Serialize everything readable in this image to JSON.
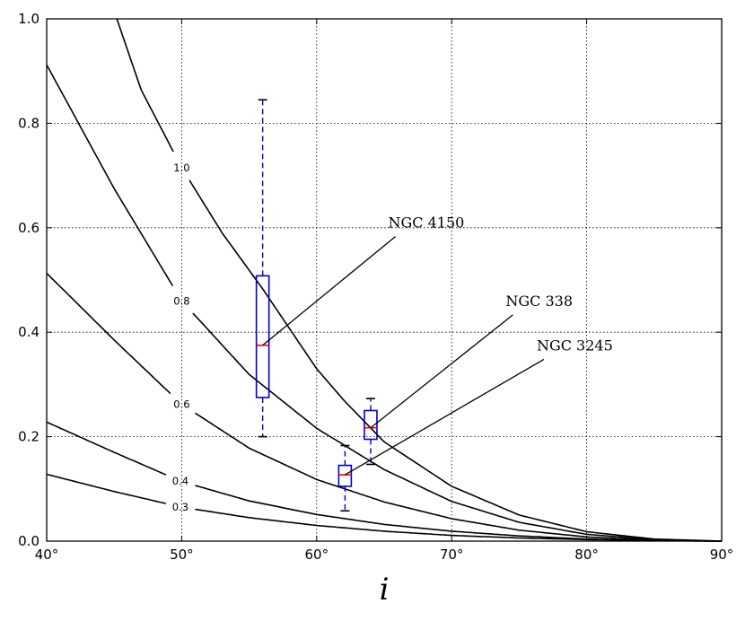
{
  "chart_data": {
    "type": "line",
    "title": "",
    "xlabel": "i",
    "ylabel": "",
    "xlim": [
      40,
      90
    ],
    "ylim": [
      0,
      1.0
    ],
    "grid": true,
    "x_ticks": [
      40,
      50,
      60,
      70,
      80,
      90
    ],
    "x_tick_labels": [
      "40°",
      "50°",
      "60°",
      "70°",
      "80°",
      "90°"
    ],
    "y_ticks": [
      0.0,
      0.2,
      0.4,
      0.6,
      0.8,
      1.0
    ],
    "y_tick_labels": [
      "0.0",
      "0.2",
      "0.4",
      "0.6",
      "0.8",
      "1.0"
    ],
    "colors": {
      "curve": "#000000",
      "box": "#0000cc",
      "median": "#ff0000",
      "grid": "#000000"
    },
    "contours": [
      {
        "label": "0.3",
        "label_x": 49.9,
        "points": [
          [
            40,
            0.128
          ],
          [
            45,
            0.095
          ],
          [
            50,
            0.065
          ],
          [
            55,
            0.045
          ],
          [
            60,
            0.03
          ],
          [
            65,
            0.019
          ],
          [
            70,
            0.011
          ],
          [
            75,
            0.006
          ],
          [
            80,
            0.003
          ],
          [
            85,
            0.001
          ],
          [
            90,
            0.0
          ]
        ]
      },
      {
        "label": "0.4",
        "label_x": 49.9,
        "points": [
          [
            40,
            0.228
          ],
          [
            45,
            0.17
          ],
          [
            50,
            0.114
          ],
          [
            55,
            0.077
          ],
          [
            60,
            0.051
          ],
          [
            65,
            0.032
          ],
          [
            70,
            0.019
          ],
          [
            75,
            0.01
          ],
          [
            80,
            0.004
          ],
          [
            85,
            0.001
          ],
          [
            90,
            0.0
          ]
        ]
      },
      {
        "label": "0.6",
        "label_x": 50.0,
        "points": [
          [
            40,
            0.513
          ],
          [
            45,
            0.385
          ],
          [
            50,
            0.262
          ],
          [
            55,
            0.178
          ],
          [
            60,
            0.118
          ],
          [
            65,
            0.075
          ],
          [
            70,
            0.043
          ],
          [
            75,
            0.021
          ],
          [
            80,
            0.008
          ],
          [
            85,
            0.002
          ],
          [
            90,
            0.0
          ]
        ]
      },
      {
        "label": "0.8",
        "label_x": 50.0,
        "points": [
          [
            40,
            0.912
          ],
          [
            45,
            0.675
          ],
          [
            50,
            0.46
          ],
          [
            55,
            0.319
          ],
          [
            60,
            0.216
          ],
          [
            65,
            0.137
          ],
          [
            70,
            0.076
          ],
          [
            75,
            0.036
          ],
          [
            80,
            0.013
          ],
          [
            85,
            0.003
          ],
          [
            90,
            0.0
          ]
        ]
      },
      {
        "label": "1.0",
        "label_x": 50.0,
        "points": [
          [
            45.2,
            1.0
          ],
          [
            47,
            0.864
          ],
          [
            50,
            0.715
          ],
          [
            53,
            0.59
          ],
          [
            56,
            0.483
          ],
          [
            60,
            0.33
          ],
          [
            62,
            0.27
          ],
          [
            65,
            0.19
          ],
          [
            70,
            0.105
          ],
          [
            75,
            0.05
          ],
          [
            80,
            0.018
          ],
          [
            85,
            0.004
          ],
          [
            90,
            0.0
          ]
        ]
      }
    ],
    "boxes": [
      {
        "x": 56.0,
        "whisker_low": 0.2,
        "q1": 0.275,
        "median": 0.375,
        "q3": 0.508,
        "whisker_high": 0.845
      },
      {
        "x": 62.1,
        "whisker_low": 0.058,
        "q1": 0.105,
        "median": 0.127,
        "q3": 0.145,
        "whisker_high": 0.183
      },
      {
        "x": 64.0,
        "whisker_low": 0.147,
        "q1": 0.195,
        "median": 0.217,
        "q3": 0.25,
        "whisker_high": 0.273
      }
    ],
    "annotations": [
      {
        "text": "NGC 4150",
        "text_x": 65.3,
        "text_y": 0.59,
        "target_x": 56.0,
        "target_y": 0.375
      },
      {
        "text": "NGC 338",
        "text_x": 74.0,
        "text_y": 0.44,
        "target_x": 64.0,
        "target_y": 0.217
      },
      {
        "text": "NGC 3245",
        "text_x": 76.3,
        "text_y": 0.355,
        "target_x": 62.1,
        "target_y": 0.127
      }
    ]
  }
}
